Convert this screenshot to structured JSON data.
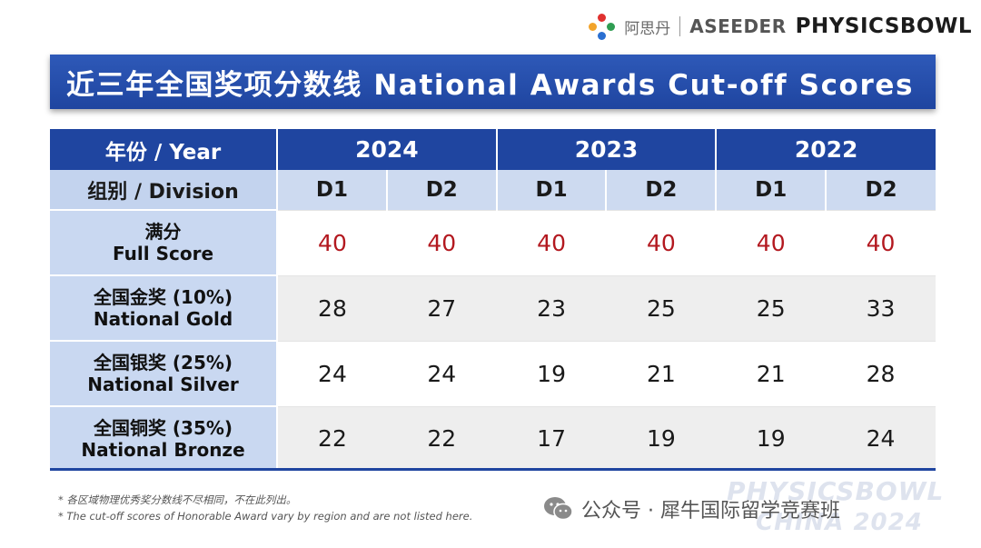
{
  "logos": {
    "cn_brand": "阿思丹",
    "aseeder": "ASEEDER",
    "physicsbowl": "PHYSICSBOWL"
  },
  "title": "近三年全国奖项分数线 National Awards Cut-off Scores",
  "table": {
    "year_header": "年份 / Year",
    "years": [
      "2024",
      "2023",
      "2022"
    ],
    "division_header": "组别 / Division",
    "divisions": [
      "D1",
      "D2",
      "D1",
      "D2",
      "D1",
      "D2"
    ],
    "rows": [
      {
        "label_cn": "满分",
        "label_en": "Full Score",
        "values": [
          "40",
          "40",
          "40",
          "40",
          "40",
          "40"
        ]
      },
      {
        "label_cn": "全国金奖 (10%)",
        "label_en": "National Gold",
        "values": [
          "28",
          "27",
          "23",
          "25",
          "25",
          "33"
        ]
      },
      {
        "label_cn": "全国银奖 (25%)",
        "label_en": "National Silver",
        "values": [
          "24",
          "24",
          "19",
          "21",
          "21",
          "28"
        ]
      },
      {
        "label_cn": "全国铜奖 (35%)",
        "label_en": "National Bronze",
        "values": [
          "22",
          "22",
          "17",
          "19",
          "19",
          "24"
        ]
      }
    ]
  },
  "footnotes": {
    "cn": "* 各区域物理优秀奖分数线不尽相同，不在此列出。",
    "en": "* The cut-off scores of Honorable Award vary by region and are not listed here."
  },
  "watermark": {
    "line1": "PHYSICSBOWL",
    "line2": "CHINA 2024"
  },
  "wechat": {
    "text": "公众号 · 犀牛国际留学竞赛班"
  },
  "colors": {
    "header_blue": "#1f45a0",
    "division_row": "#cddaf0",
    "full_score_red": "#b3181f"
  }
}
